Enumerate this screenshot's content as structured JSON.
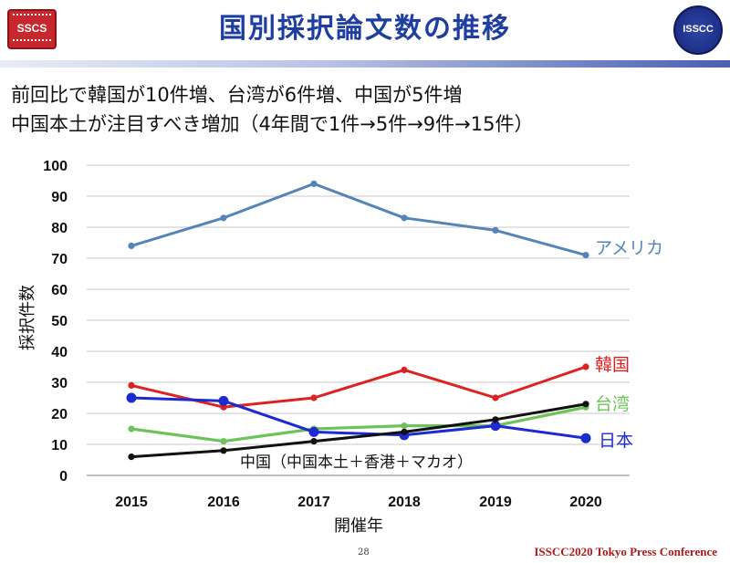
{
  "header": {
    "title": "国別採択論文数の推移",
    "logo_left_text": "SSCS",
    "logo_right_text": "ISSCC"
  },
  "subtitle": {
    "line1": "前回比で韓国が10件増、台湾が6件増、中国が5件増",
    "line2": "中国本土が注目すべき増加（4年間で1件→5件→9件→15件）"
  },
  "chart_data": {
    "type": "line",
    "x": [
      "2015",
      "2016",
      "2017",
      "2018",
      "2019",
      "2020"
    ],
    "xlabel": "開催年",
    "ylabel": "採択件数",
    "ylim": [
      0,
      100
    ],
    "yticks": [
      "0",
      "10",
      "20",
      "30",
      "40",
      "50",
      "60",
      "70",
      "80",
      "90",
      "100"
    ],
    "grid": true,
    "series": [
      {
        "name": "アメリカ",
        "color": "#5585b8",
        "values": [
          74,
          83,
          94,
          83,
          79,
          71
        ]
      },
      {
        "name": "韓国",
        "color": "#dd2222",
        "values": [
          29,
          22,
          25,
          34,
          25,
          35
        ]
      },
      {
        "name": "台湾",
        "color": "#6cc35a",
        "values": [
          15,
          11,
          15,
          16,
          16,
          22
        ]
      },
      {
        "name": "日本",
        "color": "#1d2ad0",
        "values": [
          25,
          24,
          14,
          13,
          16,
          12
        ]
      },
      {
        "name": "中国（中国本土＋香港＋マカオ）",
        "color": "#111111",
        "values": [
          6,
          8,
          11,
          14,
          18,
          23
        ]
      }
    ]
  },
  "footer": {
    "page_number": "28",
    "conference": "ISSCC2020 Tokyo Press Conference"
  }
}
